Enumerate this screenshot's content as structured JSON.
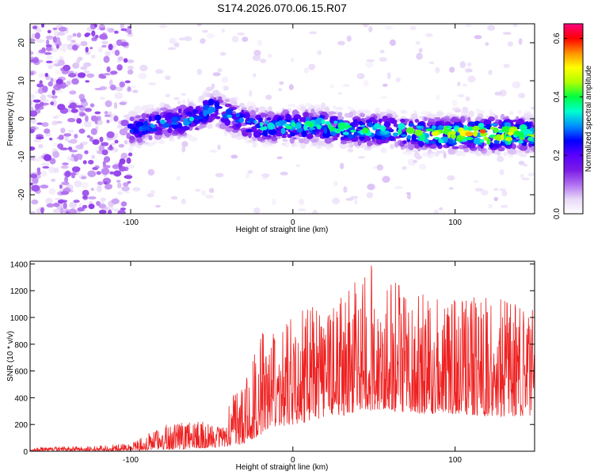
{
  "title": "S174.2026.070.06.15.R07",
  "chart_data": [
    {
      "type": "heatmap",
      "name": "spectrogram",
      "xlabel": "Height of straight line (km)",
      "ylabel": "Frequency (Hz)",
      "xlim": [
        -162,
        149
      ],
      "ylim": [
        -25,
        25
      ],
      "xticks": [
        -100,
        0,
        100
      ],
      "yticks": [
        -20,
        -10,
        0,
        10,
        20
      ],
      "colorbar": {
        "label": "Normalized spectral amplitude",
        "range": [
          0.0,
          0.65
        ],
        "ticks": [
          0.0,
          0.2,
          0.4,
          0.6
        ],
        "colormap": [
          "#ffffff",
          "#e8d8f8",
          "#b070f0",
          "#7a1ae6",
          "#5a00ff",
          "#0000ff",
          "#0090ff",
          "#00ffd0",
          "#00ff40",
          "#b0ff00",
          "#ffff00",
          "#ff9000",
          "#ff0000",
          "#ff0080"
        ]
      },
      "band_profile": {
        "x": [
          -162,
          -130,
          -100,
          -80,
          -60,
          -50,
          -40,
          -30,
          -20,
          0,
          20,
          40,
          60,
          80,
          100,
          120,
          140,
          149
        ],
        "center_hz": [
          0,
          0,
          -3,
          -1,
          0,
          3,
          1,
          -1,
          -2,
          -2,
          -2,
          -3,
          -3,
          -4,
          -4,
          -4,
          -4,
          -4
        ],
        "peak_amp": [
          0.1,
          0.12,
          0.28,
          0.3,
          0.32,
          0.28,
          0.3,
          0.3,
          0.34,
          0.36,
          0.38,
          0.38,
          0.36,
          0.42,
          0.5,
          0.58,
          0.48,
          0.42
        ]
      }
    },
    {
      "type": "line",
      "name": "snr",
      "color": "#ee2020",
      "xlabel": "Height of straight line (km)",
      "ylabel": "SNR (10 * v/v)",
      "xlim": [
        -162,
        149
      ],
      "ylim": [
        0,
        1420
      ],
      "xticks": [
        -100,
        0,
        100
      ],
      "yticks": [
        0,
        200,
        400,
        600,
        800,
        1000,
        1200,
        1400
      ],
      "envelope": {
        "x": [
          -162,
          -120,
          -100,
          -80,
          -60,
          -45,
          -35,
          -30,
          -20,
          -10,
          0,
          10,
          20,
          30,
          40,
          50,
          60,
          70,
          80,
          100,
          120,
          149
        ],
        "max": [
          30,
          40,
          60,
          200,
          230,
          200,
          460,
          520,
          960,
          900,
          1060,
          1080,
          1100,
          1240,
          1400,
          1420,
          1300,
          1200,
          1180,
          1180,
          1150,
          1100
        ],
        "min": [
          2,
          2,
          5,
          10,
          20,
          30,
          40,
          60,
          120,
          180,
          200,
          220,
          250,
          260,
          300,
          300,
          300,
          280,
          280,
          280,
          260,
          260
        ]
      }
    }
  ]
}
